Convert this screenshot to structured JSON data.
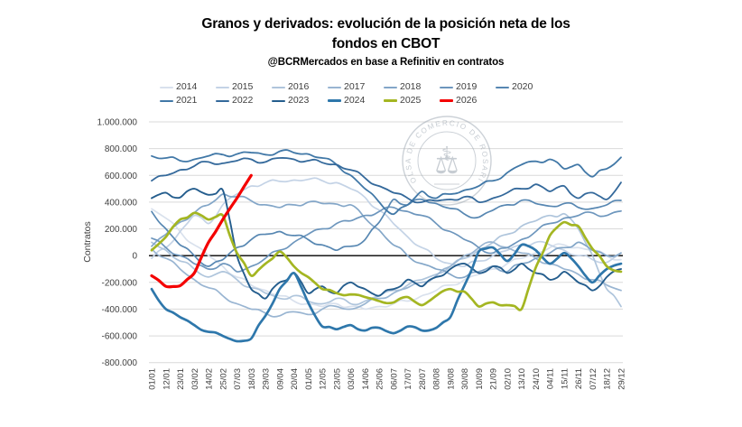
{
  "title": {
    "line1": "Granos y derivados: evolución de la posición neta de los",
    "line2": "fondos en CBOT"
  },
  "subtitle": "@BCRMercados en base a Refinitiv en contratos",
  "watermark": {
    "ring_text": "BOLSA DE COMERCIO DE ROSARIO",
    "icon": "caduceus-and-scales"
  },
  "chart_data": {
    "type": "line",
    "title": "Granos y derivados: evolución de la posición neta de los fondos en CBOT",
    "subtitle": "@BCRMercados en base a Refinitiv en contratos",
    "xlabel": "",
    "ylabel": "Contratos",
    "ylim": [
      -800000,
      1000000
    ],
    "ytick_step": 200000,
    "ytick_labels": [
      "1.000.000",
      "800.000",
      "600.000",
      "400.000",
      "200.000",
      "0",
      "-200.000",
      "-400.000",
      "-600.000",
      "-800.000"
    ],
    "grid": "horizontal",
    "zero_line": true,
    "legend_position": "top",
    "categories": [
      "01/01",
      "12/01",
      "23/01",
      "03/02",
      "14/02",
      "25/02",
      "07/03",
      "18/03",
      "29/03",
      "09/04",
      "20/04",
      "01/05",
      "12/05",
      "23/05",
      "03/06",
      "14/06",
      "25/06",
      "06/07",
      "17/07",
      "28/07",
      "08/08",
      "19/08",
      "30/08",
      "10/09",
      "21/09",
      "02/10",
      "13/10",
      "24/10",
      "04/11",
      "15/11",
      "26/11",
      "07/12",
      "18/12",
      "29/12"
    ],
    "series": [
      {
        "name": "2014",
        "color": "#d9e1ed",
        "width": 1.7,
        "values": [
          350000,
          280000,
          180000,
          80000,
          0,
          -80000,
          -160000,
          -220000,
          -260000,
          -300000,
          -340000,
          -360000,
          -380000,
          -360000,
          -380000,
          -400000,
          -380000,
          -360000,
          -340000,
          -300000,
          -260000,
          -220000,
          -180000,
          -140000,
          -100000,
          -60000,
          -20000,
          20000,
          60000,
          80000,
          60000,
          40000,
          0,
          -30000
        ]
      },
      {
        "name": "2015",
        "color": "#c4d3e6",
        "width": 1.7,
        "values": [
          -20000,
          60000,
          180000,
          300000,
          240000,
          380000,
          460000,
          520000,
          545000,
          555000,
          565000,
          570000,
          560000,
          545000,
          500000,
          435000,
          340000,
          240000,
          140000,
          60000,
          -20000,
          -60000,
          -80000,
          -40000,
          0,
          40000,
          80000,
          100000,
          80000,
          40000,
          0,
          -30000,
          -50000,
          20000
        ]
      },
      {
        "name": "2016",
        "color": "#afc5dc",
        "width": 1.7,
        "values": [
          100000,
          40000,
          -40000,
          -100000,
          -160000,
          -120000,
          -180000,
          -240000,
          -280000,
          -320000,
          -300000,
          -340000,
          -360000,
          -320000,
          -360000,
          -340000,
          -300000,
          -260000,
          -220000,
          -180000,
          -140000,
          -80000,
          -20000,
          40000,
          100000,
          160000,
          220000,
          260000,
          300000,
          313000,
          200000,
          0,
          -250000,
          -380000
        ]
      },
      {
        "name": "2017",
        "color": "#99b5d2",
        "width": 1.7,
        "values": [
          50000,
          -20000,
          -100000,
          -180000,
          -240000,
          -300000,
          -360000,
          -400000,
          -430000,
          -450000,
          -420000,
          -440000,
          -400000,
          -380000,
          -400000,
          -360000,
          -320000,
          -280000,
          -240000,
          -200000,
          -150000,
          -80000,
          0,
          60000,
          100000,
          60000,
          20000,
          -20000,
          -60000,
          -100000,
          -140000,
          -180000,
          -220000,
          -260000
        ]
      },
      {
        "name": "2018",
        "color": "#83a6c8",
        "width": 1.7,
        "values": [
          70000,
          160000,
          250000,
          320000,
          380000,
          460000,
          440000,
          410000,
          380000,
          360000,
          380000,
          400000,
          390000,
          385000,
          380000,
          280000,
          190000,
          80000,
          0,
          -60000,
          -100000,
          -140000,
          -160000,
          -120000,
          -80000,
          -120000,
          -60000,
          -20000,
          20000,
          60000,
          100000,
          40000,
          0,
          20000
        ]
      },
      {
        "name": "2019",
        "color": "#6d96bd",
        "width": 1.7,
        "values": [
          130000,
          60000,
          0,
          -60000,
          -100000,
          -60000,
          -120000,
          -80000,
          -20000,
          40000,
          100000,
          160000,
          200000,
          240000,
          260000,
          300000,
          330000,
          360000,
          330000,
          300000,
          240000,
          180000,
          120000,
          60000,
          20000,
          60000,
          120000,
          180000,
          240000,
          280000,
          300000,
          320000,
          300000,
          333000
        ]
      },
      {
        "name": "2020",
        "color": "#5787b2",
        "width": 1.7,
        "values": [
          330000,
          200000,
          80000,
          0,
          -80000,
          -30000,
          60000,
          120000,
          160000,
          180000,
          150000,
          120000,
          80000,
          40000,
          70000,
          120000,
          250000,
          420000,
          380000,
          420000,
          390000,
          353000,
          310000,
          287000,
          340000,
          380000,
          413000,
          390000,
          370000,
          390000,
          360000,
          353000,
          380000,
          413000
        ]
      },
      {
        "name": "2021",
        "color": "#4178a7",
        "width": 1.8,
        "values": [
          745000,
          730000,
          710000,
          720000,
          745000,
          755000,
          760000,
          770000,
          755000,
          780000,
          770000,
          760000,
          730000,
          680000,
          600000,
          500000,
          400000,
          310000,
          380000,
          480000,
          430000,
          460000,
          490000,
          520000,
          560000,
          620000,
          680000,
          705000,
          720000,
          650000,
          680000,
          590000,
          650000,
          735000
        ]
      },
      {
        "name": "2022",
        "color": "#34699b",
        "width": 1.8,
        "values": [
          560000,
          600000,
          640000,
          670000,
          700000,
          690000,
          710000,
          720000,
          700000,
          730000,
          720000,
          710000,
          695000,
          680000,
          640000,
          580000,
          520000,
          470000,
          430000,
          400000,
          410000,
          420000,
          440000,
          400000,
          430000,
          470000,
          500000,
          533000,
          480000,
          520000,
          430000,
          470000,
          420000,
          547000
        ]
      },
      {
        "name": "2023",
        "color": "#245d8d",
        "width": 1.9,
        "values": [
          430000,
          470000,
          435000,
          500000,
          455000,
          490000,
          0,
          -250000,
          -320000,
          -200000,
          -130000,
          -280000,
          -230000,
          -280000,
          -200000,
          -250000,
          -300000,
          -250000,
          -180000,
          -230000,
          -160000,
          -100000,
          -60000,
          -130000,
          -80000,
          -130000,
          -60000,
          -130000,
          -180000,
          -120000,
          -200000,
          -260000,
          -160000,
          -100000
        ]
      },
      {
        "name": "2024",
        "color": "#2e77ab",
        "width": 2.7,
        "values": [
          -250000,
          -400000,
          -460000,
          -520000,
          -570000,
          -600000,
          -640000,
          -620000,
          -450000,
          -250000,
          -130000,
          -350000,
          -530000,
          -550000,
          -520000,
          -560000,
          -540000,
          -580000,
          -530000,
          -560000,
          -540000,
          -460000,
          -220000,
          30000,
          60000,
          -40000,
          80000,
          40000,
          -60000,
          20000,
          -80000,
          -200000,
          -100000,
          -60000
        ]
      },
      {
        "name": "2025",
        "color": "#a4b622",
        "width": 2.7,
        "values": [
          40000,
          140000,
          270000,
          320000,
          270000,
          300000,
          20000,
          -150000,
          -60000,
          30000,
          -80000,
          -160000,
          -250000,
          -280000,
          -290000,
          -310000,
          -340000,
          -350000,
          -310000,
          -370000,
          -300000,
          -250000,
          -270000,
          -380000,
          -350000,
          -370000,
          -400000,
          -90000,
          150000,
          250000,
          220000,
          50000,
          -80000,
          -120000
        ]
      },
      {
        "name": "2026",
        "color": "#f40000",
        "width": 3.2,
        "values": [
          -150000,
          -230000,
          -225000,
          -130000,
          100000,
          270000,
          430000,
          600000
        ]
      }
    ]
  }
}
